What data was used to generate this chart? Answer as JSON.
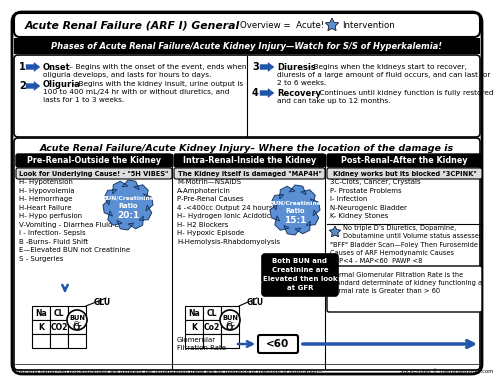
{
  "header_bar": "Phases of Acute Renal Failure/Acute Kidney Injury—Watch for S/S of Hyperkalemia!",
  "phase1_bold": "Onset",
  "phase1_rest": " – Begins with the onset of the event, ends when",
  "phase1_line2": "oliguria develops, and lasts for hours to days.",
  "phase2_bold": "Oliguria",
  "phase2_rest": " – Begins with the kidney insult, urine output is",
  "phase2_line2": "100 to 400 mL/24 hr with or without diuretics, and",
  "phase2_line3": "lasts for 1 to 3 weeks.",
  "phase3_bold": "Diuresis",
  "phase3_rest": " – Begins when the kidneys start to recover,",
  "phase3_line2": "diuresis of a large amount of fluid occurs, and can last for",
  "phase3_line3": "2 to 6 weeks.",
  "phase4_bold": "Recovery",
  "phase4_rest": " – Continues until kidney function is fully restored",
  "phase4_line2": "and can take up to 12 months.",
  "section2_title": "Acute Renal Failure/Acute Kidney Injury– Where the location of the damage is",
  "pre_title": "Pre-Renal-Outside the Kidney",
  "pre_sub": "Look for Underlying Cause! - \"5H VIBES\"",
  "pre_list": [
    "H- Hypotension",
    "H- Hypovolemia",
    "H- Hemorrhage",
    "H-Heart Failure",
    "H- Hypo perfusion",
    "V-Vomiting - Diarrhea Fluid Loss",
    "I - Infection- Sepsis",
    "B -Burns- Fluid Shift",
    "E—Elevated BUN not Creatinine",
    "S - Surgeries"
  ],
  "pre_ratio": "20:1",
  "intra_title": "Intra-Renal-Inside the Kidney",
  "intra_sub": "The Kidney itself is damaged \"MAP4H\"",
  "intra_list": [
    "M-Motrin—NSAIDS",
    "A-Amphotericin",
    "P-Pre-Renal Causes",
    "4 -<400cc Output 24 hours",
    "H– Hydrogen Ionic Acidotic",
    "H- H2 Blockers",
    "H- Hypoxic Episode",
    "H-Hemolysis-Rhabdomyolysis"
  ],
  "intra_ratio": "15:1",
  "post_title": "Post-Renal-After the Kidney",
  "post_sub": "Kidney works but its blocked \"3CPINK\"",
  "post_list": [
    "3C-Clots, Cancer, Crystals",
    "P- Prostate Problems",
    "I- Infection",
    "N-Neurogenic Bladder",
    "K- Kidney Stones"
  ],
  "post_note1a": "No triple D’s Diuretics, Dopamine,",
  "post_note1b": "Dobutamine until Volume status assessed",
  "post_note2": "\"BFF\" Bladder Scan—Foley Then Furosemide",
  "post_note3": "Causes of ARF Hemodynamic Causes",
  "post_note4": "CVP<4 - MAP<60  PAWP <8",
  "post_note5a": "Normal Glomerular Filtration Rate is the",
  "post_note5b": "standard determinate of kidney functioning a",
  "post_note5c": "normal rate is Greater than > 60",
  "gfr_label": "<60",
  "gfr_title1": "Glomerular",
  "gfr_title2": "Filtration Rate",
  "both_bun_l1": "Both BUN and",
  "both_bun_l2": "Creatinine are",
  "both_bun_l3": "Elevated then look",
  "both_bun_l4": "at GFR",
  "footer1": "Nursing Kamp—All procedure/labs are different per organization these are for guidance of methods of illustration—",
  "footer2": "StickEnotes © thenursesnotes.com",
  "bg_color": "#ffffff",
  "gear_color": "#5b8fd4",
  "star_color": "#5b8fd4",
  "arrow_color": "#2255aa",
  "black": "#000000",
  "dark_gray": "#e0e0e0"
}
